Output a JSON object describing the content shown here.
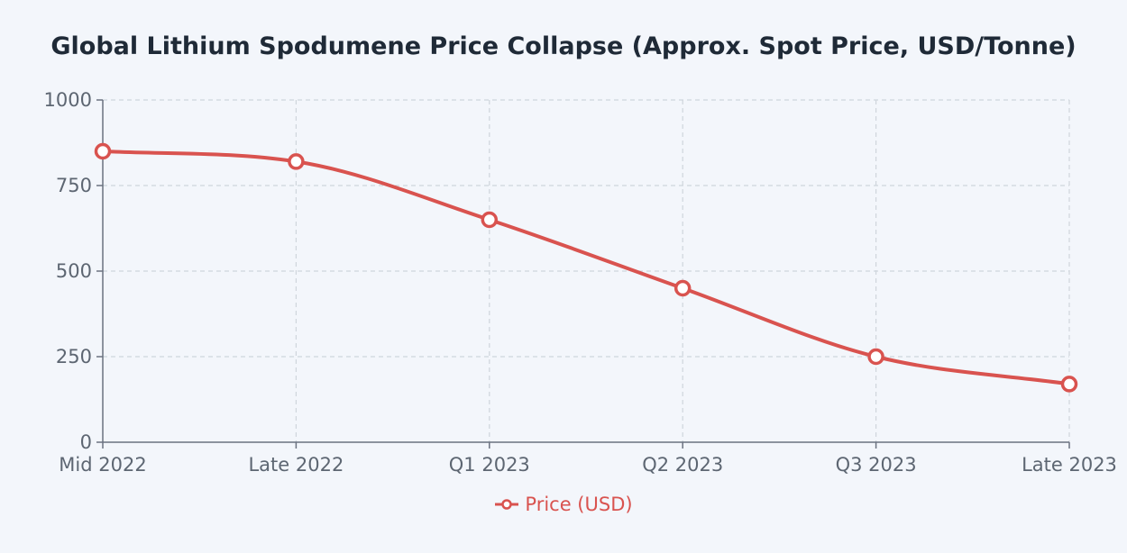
{
  "chart_data": {
    "type": "line",
    "title": "Global Lithium Spodumene Price Collapse (Approx. Spot Price, USD/Tonne)",
    "categories": [
      "Mid 2022",
      "Late 2022",
      "Q1 2023",
      "Q2 2023",
      "Q3 2023",
      "Late 2023"
    ],
    "series": [
      {
        "name": "Price (USD)",
        "values": [
          850,
          820,
          650,
          450,
          250,
          170
        ],
        "color": "#d9534f"
      }
    ],
    "xlabel": "",
    "ylabel": "",
    "ylim": [
      0,
      1000
    ],
    "yticks": [
      "0",
      "250",
      "500",
      "750",
      "1000"
    ],
    "grid": true,
    "legend_position": "bottom-center"
  }
}
